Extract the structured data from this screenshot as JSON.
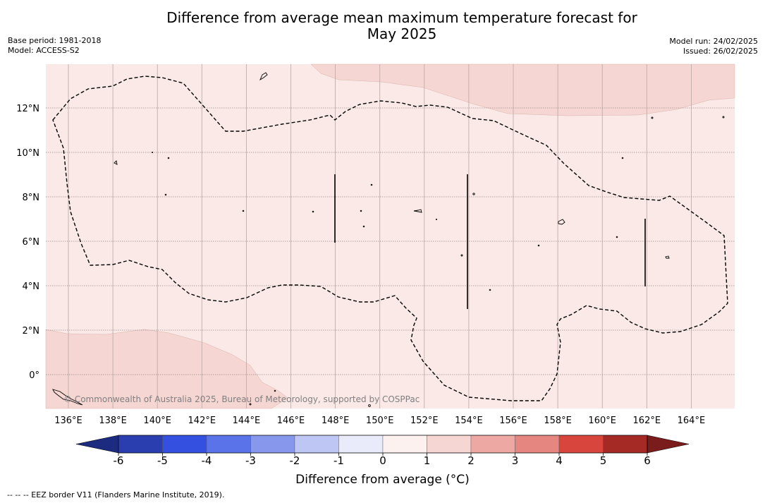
{
  "header": {
    "title_line1": "Difference from average mean maximum temperature forecast for",
    "title_line2": "May 2025",
    "base_period": "Base period: 1981-2018",
    "model": "Model: ACCESS-S2",
    "model_run": "Model run: 24/02/2025",
    "issued": "Issued: 26/02/2025"
  },
  "map": {
    "lon_labels": [
      "136°E",
      "138°E",
      "140°E",
      "142°E",
      "144°E",
      "146°E",
      "148°E",
      "150°E",
      "152°E",
      "154°E",
      "156°E",
      "158°E",
      "160°E",
      "162°E",
      "164°E"
    ],
    "lat_labels": [
      "12°N",
      "10°N",
      "8°N",
      "6°N",
      "4°N",
      "2°N",
      "0°"
    ],
    "watermark": "© Commonwealth of Australia 2025, Bureau of Meteorology, supported by COSPPac",
    "background_anomaly_color": "#fbe9e7",
    "warm_anomaly_color": "#f5d6d2"
  },
  "colorbar": {
    "ticks": [
      "-6",
      "-5",
      "-4",
      "-3",
      "-2",
      "-1",
      "0",
      "1",
      "2",
      "3",
      "4",
      "5",
      "6"
    ],
    "colors": [
      "#1c2a80",
      "#2b3eb0",
      "#3350e0",
      "#5b73e8",
      "#8797ec",
      "#bec6f3",
      "#e9ebfb",
      "#fdf1ef",
      "#f5d6d2",
      "#eda8a3",
      "#e58780",
      "#d7453d",
      "#a52925",
      "#7a1c1c"
    ],
    "label": "Difference from average (°C)"
  },
  "footnote": "-- -- -- EEZ border V11 (Flanders Marine Institute, 2019)."
}
